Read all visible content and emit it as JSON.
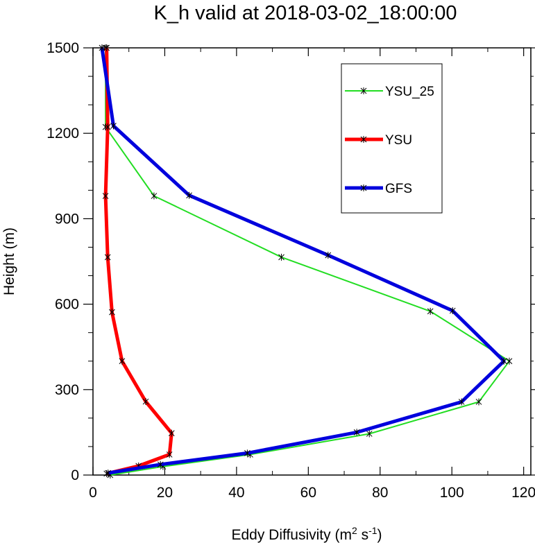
{
  "chart_data": {
    "type": "line",
    "title": "K_h valid at 2018-03-02_18:00:00",
    "xlabel": "Eddy Diffusivity (m",
    "xlabel_sup1": "2",
    "xlabel_mid": " s",
    "xlabel_sup2": "-1",
    "xlabel_end": ")",
    "ylabel": "Height (m)",
    "xlim": [
      0,
      122
    ],
    "ylim": [
      0,
      1500
    ],
    "xticks": [
      0,
      20,
      40,
      60,
      80,
      100,
      120
    ],
    "xtick_labels": [
      "0",
      "20",
      "40",
      "60",
      "80",
      "100",
      "120"
    ],
    "yticks": [
      0,
      300,
      600,
      900,
      1200,
      1500
    ],
    "ytick_labels": [
      "0",
      "300",
      "600",
      "900",
      "1200",
      "1500"
    ],
    "legend_position": "top-right",
    "grid": false,
    "series": [
      {
        "name": "YSU_25",
        "color": "#22dd22",
        "line_width": 2,
        "points": [
          [
            4.8,
            0
          ],
          [
            19.5,
            30
          ],
          [
            43.8,
            72
          ],
          [
            77,
            145
          ],
          [
            107.5,
            257
          ],
          [
            116,
            400
          ],
          [
            94,
            575
          ],
          [
            52.5,
            765
          ],
          [
            17,
            980
          ],
          [
            3.5,
            1222
          ],
          [
            3.5,
            1500
          ]
        ]
      },
      {
        "name": "YSU",
        "color": "#ff0000",
        "line_width": 5,
        "points": [
          [
            3.8,
            5
          ],
          [
            12.7,
            32
          ],
          [
            21.3,
            72
          ],
          [
            21.9,
            147
          ],
          [
            14.7,
            258
          ],
          [
            8.1,
            400
          ],
          [
            5.3,
            572
          ],
          [
            4.1,
            765
          ],
          [
            3.5,
            980
          ],
          [
            4.1,
            1222
          ],
          [
            3.8,
            1500
          ]
        ]
      },
      {
        "name": "GFS",
        "color": "#0000dd",
        "line_width": 5,
        "points": [
          [
            4.2,
            7
          ],
          [
            18.8,
            37
          ],
          [
            43,
            77
          ],
          [
            73.5,
            150
          ],
          [
            102.7,
            257
          ],
          [
            114.5,
            400
          ],
          [
            100.2,
            577
          ],
          [
            65.5,
            772
          ],
          [
            26.8,
            982
          ],
          [
            5.7,
            1226
          ],
          [
            2.5,
            1500
          ]
        ]
      }
    ]
  }
}
